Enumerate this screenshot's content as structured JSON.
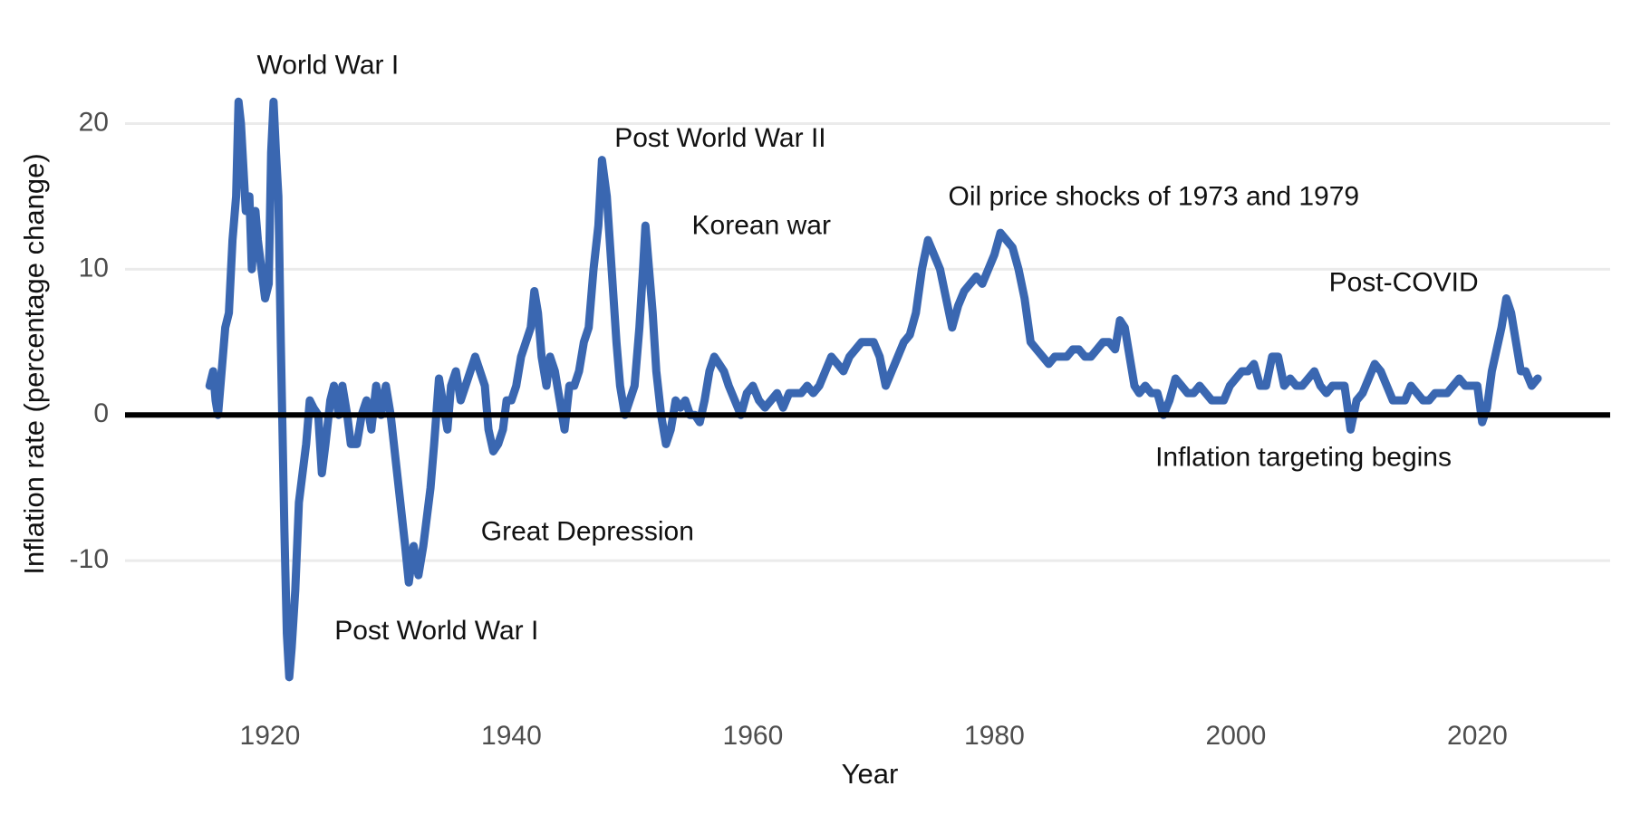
{
  "chart_data": {
    "type": "line",
    "x_label": "Year",
    "y_label": "Inflation rate (percentage change)",
    "xlim": [
      1908,
      2031
    ],
    "ylim": [
      -20,
      25
    ],
    "xticks": [
      1920,
      1940,
      1960,
      1980,
      2000,
      2020
    ],
    "yticks": [
      -10,
      0,
      10,
      20
    ],
    "grid": true,
    "reference_line": 0,
    "annotations": [
      {
        "text": "World War I",
        "x": 1924.8,
        "y": 23.9
      },
      {
        "text": "Post World War II",
        "x": 1957.3,
        "y": 18.9
      },
      {
        "text": "Korean war",
        "x": 1960.7,
        "y": 12.9
      },
      {
        "text": "Oil price shocks of 1973 and 1979",
        "x": 1993.2,
        "y": 14.9
      },
      {
        "text": "Post-COVID",
        "x": 2013.9,
        "y": 9.0
      },
      {
        "text": "Inflation targeting begins",
        "x": 2005.6,
        "y": -3.0
      },
      {
        "text": "Great Depression",
        "x": 1946.3,
        "y": -8.1
      },
      {
        "text": "Post World War I",
        "x": 1933.8,
        "y": -14.9
      }
    ],
    "series": [
      {
        "name": "Inflation rate",
        "color": "#3a67b1",
        "x": [
          1915.0,
          1915.3,
          1915.5,
          1915.7,
          1916.0,
          1916.3,
          1916.6,
          1916.9,
          1917.2,
          1917.4,
          1917.6,
          1917.8,
          1918.0,
          1918.3,
          1918.5,
          1918.8,
          1919.0,
          1919.3,
          1919.6,
          1919.9,
          1920.1,
          1920.3,
          1920.5,
          1920.7,
          1920.9,
          1921.2,
          1921.4,
          1921.6,
          1921.8,
          1922.1,
          1922.4,
          1922.7,
          1923.0,
          1923.3,
          1923.6,
          1924.0,
          1924.3,
          1924.6,
          1925.0,
          1925.3,
          1925.7,
          1926.0,
          1926.4,
          1926.7,
          1927.2,
          1927.6,
          1928.0,
          1928.4,
          1928.8,
          1929.2,
          1929.6,
          1930.0,
          1930.4,
          1930.8,
          1931.2,
          1931.5,
          1931.9,
          1932.3,
          1932.7,
          1933.0,
          1933.3,
          1933.6,
          1934.0,
          1934.3,
          1934.7,
          1935.0,
          1935.4,
          1935.8,
          1936.2,
          1936.6,
          1937.0,
          1937.4,
          1937.8,
          1938.1,
          1938.5,
          1938.9,
          1939.3,
          1939.6,
          1940.0,
          1940.4,
          1940.8,
          1941.2,
          1941.6,
          1941.9,
          1942.2,
          1942.5,
          1942.9,
          1943.2,
          1943.6,
          1944.0,
          1944.4,
          1944.8,
          1945.2,
          1945.6,
          1946.0,
          1946.4,
          1946.8,
          1947.2,
          1947.5,
          1947.9,
          1948.3,
          1948.7,
          1949.0,
          1949.4,
          1949.8,
          1950.2,
          1950.6,
          1950.9,
          1951.1,
          1951.4,
          1951.7,
          1952.0,
          1952.4,
          1952.8,
          1953.2,
          1953.6,
          1954.0,
          1954.4,
          1954.8,
          1955.2,
          1955.6,
          1956.0,
          1956.4,
          1956.8,
          1957.2,
          1957.6,
          1958.0,
          1958.5,
          1959.0,
          1959.5,
          1960.0,
          1960.5,
          1961.0,
          1961.5,
          1962.0,
          1962.5,
          1963.0,
          1963.5,
          1964.0,
          1964.5,
          1965.0,
          1965.5,
          1966.0,
          1966.5,
          1967.0,
          1967.5,
          1968.0,
          1968.5,
          1969.0,
          1969.5,
          1970.0,
          1970.5,
          1971.0,
          1971.5,
          1972.0,
          1972.5,
          1973.0,
          1973.5,
          1974.0,
          1974.5,
          1975.0,
          1975.5,
          1976.0,
          1976.5,
          1977.0,
          1977.5,
          1978.0,
          1978.5,
          1979.0,
          1979.5,
          1980.0,
          1980.5,
          1981.0,
          1981.5,
          1982.0,
          1982.5,
          1983.0,
          1983.5,
          1984.0,
          1984.5,
          1985.0,
          1985.5,
          1986.0,
          1986.5,
          1987.0,
          1987.5,
          1988.0,
          1988.5,
          1989.0,
          1989.5,
          1990.0,
          1990.4,
          1990.8,
          1991.2,
          1991.6,
          1992.0,
          1992.5,
          1993.0,
          1993.5,
          1994.0,
          1994.5,
          1995.0,
          1995.5,
          1996.0,
          1996.5,
          1997.0,
          1997.5,
          1998.0,
          1998.5,
          1999.0,
          1999.5,
          2000.0,
          2000.5,
          2001.0,
          2001.5,
          2002.0,
          2002.5,
          2003.0,
          2003.5,
          2004.0,
          2004.5,
          2005.0,
          2005.5,
          2006.0,
          2006.5,
          2007.0,
          2007.5,
          2008.0,
          2008.5,
          2009.0,
          2009.5,
          2010.0,
          2010.5,
          2011.0,
          2011.5,
          2012.0,
          2012.5,
          2013.0,
          2013.5,
          2014.0,
          2014.5,
          2015.0,
          2015.5,
          2016.0,
          2016.5,
          2017.0,
          2017.5,
          2018.0,
          2018.5,
          2019.0,
          2019.5,
          2020.0,
          2020.4,
          2020.8,
          2021.2,
          2021.6,
          2022.0,
          2022.4,
          2022.8,
          2023.2,
          2023.6,
          2024.0,
          2024.5,
          2025.0
        ],
        "values": [
          2,
          3,
          1,
          0,
          3,
          6,
          7,
          12,
          15,
          21.5,
          20,
          17,
          14,
          15,
          10,
          14,
          12,
          10,
          8,
          9,
          18,
          21.5,
          18,
          15,
          5,
          -8,
          -15,
          -18,
          -16,
          -12,
          -6,
          -4,
          -2,
          1,
          0.5,
          0,
          -4,
          -2,
          1,
          2,
          0,
          2,
          0,
          -2,
          -2,
          0,
          1,
          -1,
          2,
          0,
          2,
          0,
          -3,
          -6,
          -9,
          -11.5,
          -9,
          -11,
          -9,
          -7,
          -5,
          -2,
          2.5,
          1,
          -1,
          2,
          3,
          1,
          2,
          3,
          4,
          3,
          2,
          -1,
          -2.5,
          -2,
          -1,
          1,
          1,
          2,
          4,
          5,
          6,
          8.5,
          7,
          4,
          2,
          4,
          3,
          1,
          -1,
          2,
          2,
          3,
          5,
          6,
          10,
          13,
          17.5,
          15,
          10,
          5,
          2,
          0,
          1,
          2,
          6,
          10,
          13,
          10,
          7,
          3,
          0,
          -2,
          -1,
          1,
          0.5,
          1,
          0,
          0,
          -0.5,
          1,
          3,
          4,
          3.5,
          3,
          2,
          1,
          0,
          1.5,
          2,
          1,
          0.5,
          1,
          1.5,
          0.5,
          1.5,
          1.5,
          1.5,
          2,
          1.5,
          2,
          3,
          4,
          3.5,
          3,
          4,
          4.5,
          5,
          5,
          5,
          4,
          2,
          3,
          4,
          5,
          5.5,
          7,
          10,
          12,
          11,
          10,
          8,
          6,
          7.5,
          8.5,
          9,
          9.5,
          9,
          10,
          11,
          12.5,
          12,
          11.5,
          10,
          8,
          5,
          4.5,
          4,
          3.5,
          4,
          4,
          4,
          4.5,
          4.5,
          4,
          4,
          4.5,
          5,
          5,
          4.5,
          6.5,
          6,
          4,
          2,
          1.5,
          2,
          1.5,
          1.5,
          0,
          1,
          2.5,
          2,
          1.5,
          1.5,
          2,
          1.5,
          1,
          1,
          1,
          2,
          2.5,
          3,
          3,
          3.5,
          2,
          2,
          4,
          4,
          2,
          2.5,
          2,
          2,
          2.5,
          3,
          2,
          1.5,
          2,
          2,
          2,
          -1,
          1,
          1.5,
          2.5,
          3.5,
          3,
          2,
          1,
          1,
          1,
          2,
          1.5,
          1,
          1,
          1.5,
          1.5,
          1.5,
          2,
          2.5,
          2,
          2,
          2,
          -0.5,
          0.5,
          3,
          4.5,
          6,
          8,
          7,
          5,
          3,
          3,
          2,
          2.5
        ]
      }
    ]
  }
}
